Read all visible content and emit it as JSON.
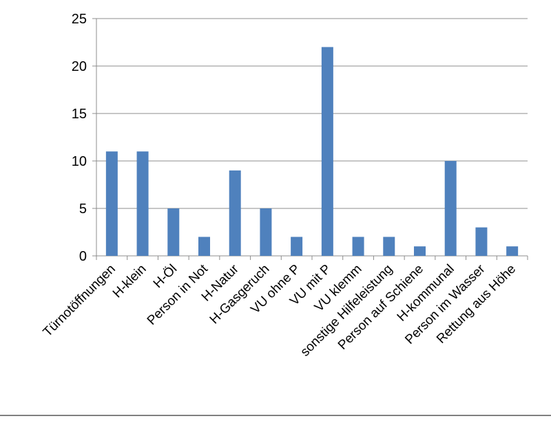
{
  "chart_data": {
    "type": "bar",
    "categories": [
      "Türnotöffnungen",
      "H-klein",
      "H-Öl",
      "Person in Not",
      "H-Natur",
      "H-Gasgeruch",
      "VU ohne P",
      "VU mit P",
      "VU klemm",
      "sonstige Hilfeleistung",
      "Person auf Schiene",
      "H-kommunal",
      "Person im Wasser",
      "Rettung aus Höhe"
    ],
    "values": [
      11,
      11,
      5,
      2,
      9,
      5,
      2,
      22,
      2,
      2,
      1,
      10,
      3,
      1
    ],
    "y_ticks": [
      "0",
      "5",
      "10",
      "15",
      "20",
      "25"
    ],
    "ylim": [
      0,
      25
    ],
    "grid": true,
    "legend": "none",
    "bar_color": "#4F81BD",
    "grid_color": "#8C8C8C",
    "axis_color": "#8C8C8C",
    "text_color": "#000000"
  }
}
